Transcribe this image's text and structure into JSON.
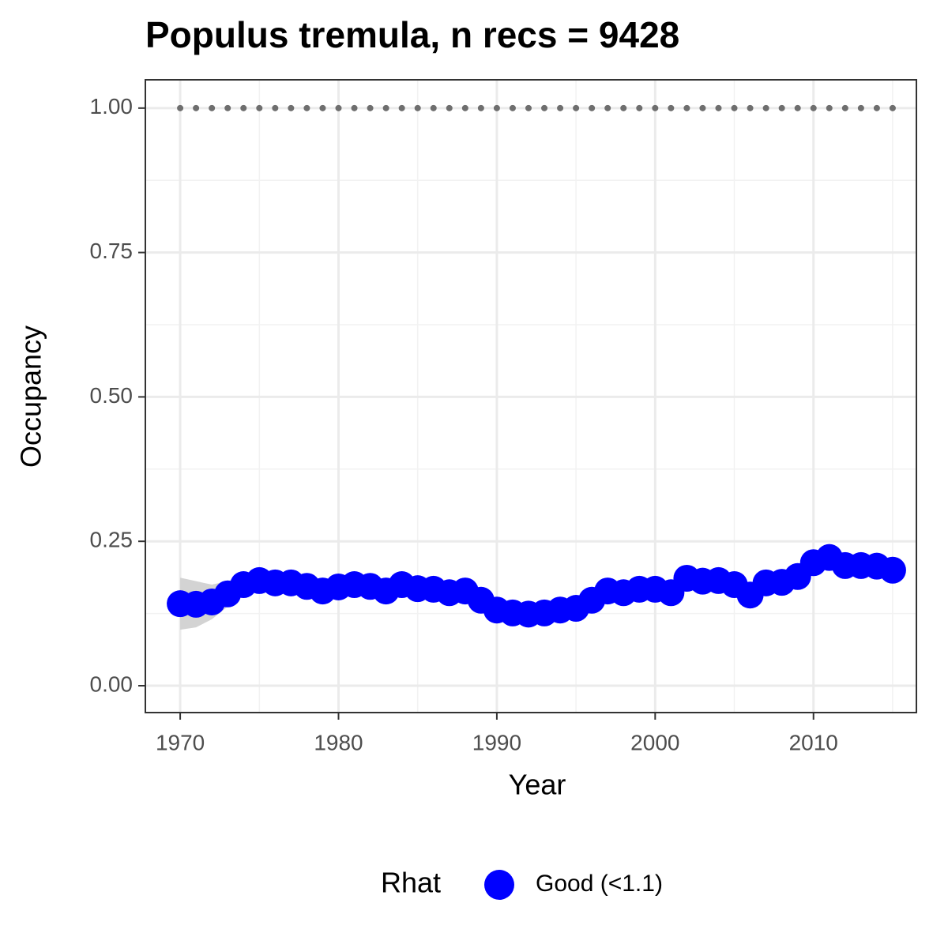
{
  "chart_data": {
    "type": "line",
    "title": "Populus tremula, n recs = 9428",
    "x_label": "Year",
    "y_label": "Occupancy",
    "x": [
      1970,
      1971,
      1972,
      1973,
      1974,
      1975,
      1976,
      1977,
      1978,
      1979,
      1980,
      1981,
      1982,
      1983,
      1984,
      1985,
      1986,
      1987,
      1988,
      1989,
      1990,
      1991,
      1992,
      1993,
      1994,
      1995,
      1996,
      1997,
      1998,
      1999,
      2000,
      2001,
      2002,
      2003,
      2004,
      2005,
      2006,
      2007,
      2008,
      2009,
      2010,
      2011,
      2012,
      2013,
      2014,
      2015
    ],
    "series": [
      {
        "name": "Good (<1.1)",
        "color": "#0000ff",
        "values": [
          0.142,
          0.141,
          0.145,
          0.159,
          0.175,
          0.182,
          0.178,
          0.178,
          0.172,
          0.164,
          0.171,
          0.175,
          0.172,
          0.164,
          0.175,
          0.168,
          0.167,
          0.161,
          0.164,
          0.148,
          0.131,
          0.126,
          0.124,
          0.126,
          0.131,
          0.134,
          0.148,
          0.164,
          0.161,
          0.167,
          0.167,
          0.161,
          0.186,
          0.181,
          0.182,
          0.175,
          0.157,
          0.178,
          0.179,
          0.189,
          0.213,
          0.222,
          0.208,
          0.208,
          0.207,
          0.2
        ]
      }
    ],
    "ribbon": {
      "color": "#d3d3d3",
      "lower": [
        0.097,
        0.101,
        0.115,
        0.137,
        0.159,
        0.166,
        0.162,
        0.162,
        0.156,
        0.148,
        0.155,
        0.159,
        0.156,
        0.148,
        0.159,
        0.152,
        0.151,
        0.145,
        0.148,
        0.132,
        0.115,
        0.11,
        0.108,
        0.11,
        0.115,
        0.118,
        0.132,
        0.148,
        0.145,
        0.151,
        0.151,
        0.145,
        0.17,
        0.165,
        0.166,
        0.159,
        0.141,
        0.162,
        0.163,
        0.173,
        0.197,
        0.206,
        0.192,
        0.192,
        0.191,
        0.184
      ],
      "upper": [
        0.187,
        0.181,
        0.175,
        0.181,
        0.191,
        0.198,
        0.194,
        0.194,
        0.188,
        0.18,
        0.187,
        0.191,
        0.188,
        0.18,
        0.191,
        0.184,
        0.183,
        0.177,
        0.18,
        0.164,
        0.147,
        0.142,
        0.14,
        0.142,
        0.147,
        0.15,
        0.164,
        0.18,
        0.177,
        0.183,
        0.183,
        0.177,
        0.202,
        0.197,
        0.198,
        0.191,
        0.173,
        0.194,
        0.195,
        0.205,
        0.229,
        0.238,
        0.224,
        0.224,
        0.223,
        0.216
      ]
    },
    "reference_line": {
      "value": 1,
      "color": "#6e6e6e"
    },
    "legend_title": "Rhat",
    "legend_position": "bottom",
    "xlim": [
      1967.8,
      2016.5
    ],
    "ylim": [
      -0.0465,
      1.049
    ],
    "xticks": [
      1970,
      1980,
      1990,
      2000,
      2010
    ],
    "yticks": [
      {
        "value": 0,
        "label": "0.00"
      },
      {
        "value": 0.25,
        "label": "0.25"
      },
      {
        "value": 0.5,
        "label": "0.50"
      },
      {
        "value": 0.75,
        "label": "0.75"
      },
      {
        "value": 1,
        "label": "1.00"
      }
    ],
    "minor_xticks": [
      1975,
      1985,
      1995,
      2005,
      2015
    ],
    "minor_yticks": [
      0.125,
      0.375,
      0.625,
      0.875
    ],
    "grid": true
  }
}
